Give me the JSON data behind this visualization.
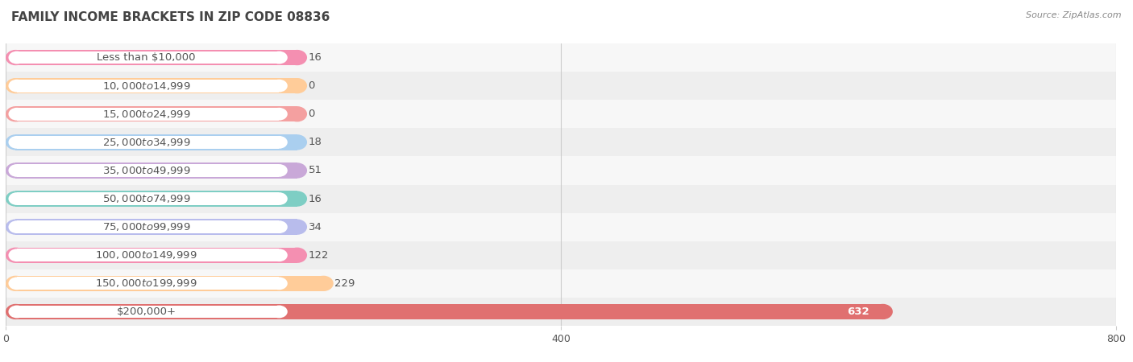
{
  "title": "FAMILY INCOME BRACKETS IN ZIP CODE 08836",
  "source": "Source: ZipAtlas.com",
  "categories": [
    "Less than $10,000",
    "$10,000 to $14,999",
    "$15,000 to $24,999",
    "$25,000 to $34,999",
    "$35,000 to $49,999",
    "$50,000 to $74,999",
    "$75,000 to $99,999",
    "$100,000 to $149,999",
    "$150,000 to $199,999",
    "$200,000+"
  ],
  "values": [
    16,
    0,
    0,
    18,
    51,
    16,
    34,
    122,
    229,
    632
  ],
  "bar_colors": [
    "#F48FB1",
    "#FFCC99",
    "#F4A0A0",
    "#AACFEF",
    "#C9A8D8",
    "#7ECEC4",
    "#B8BCEC",
    "#F48FB1",
    "#FFCC99",
    "#E07070"
  ],
  "bg_row_light": "#F7F7F7",
  "bg_row_dark": "#EEEEEE",
  "xlim_data": [
    0,
    800
  ],
  "xticks": [
    0,
    400,
    800
  ],
  "label_color_dark": "#555555",
  "label_color_white": "#FFFFFF",
  "value_label_threshold": 580,
  "title_fontsize": 11,
  "label_fontsize": 9.5,
  "tick_fontsize": 9,
  "source_fontsize": 8
}
